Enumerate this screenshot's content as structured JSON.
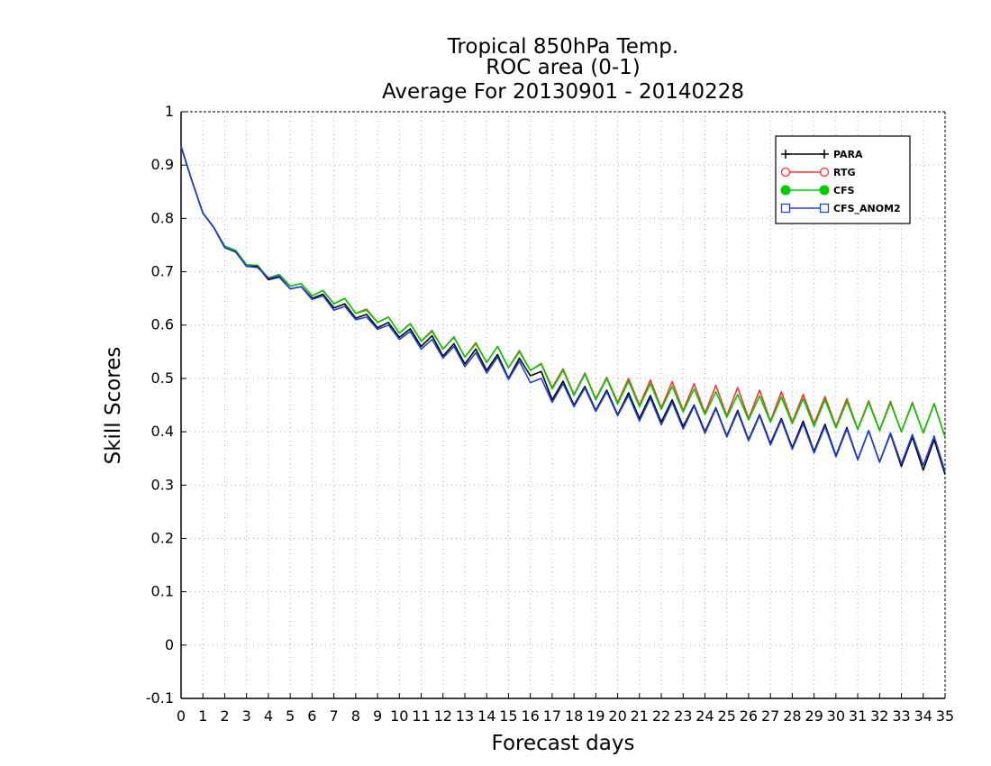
{
  "chart_data": {
    "type": "line",
    "title_lines": [
      "Tropical 850hPa Temp.",
      "ROC area (0-1)",
      "Average For 20130901 - 20140228"
    ],
    "xlabel": "Forecast days",
    "ylabel": "Skill Scores",
    "xlim": [
      0,
      35
    ],
    "ylim": [
      -0.1,
      1
    ],
    "xticks": [
      0,
      1,
      2,
      3,
      4,
      5,
      6,
      7,
      8,
      9,
      10,
      11,
      12,
      13,
      14,
      15,
      16,
      17,
      18,
      19,
      20,
      21,
      22,
      23,
      24,
      25,
      26,
      27,
      28,
      29,
      30,
      31,
      32,
      33,
      34,
      35
    ],
    "yticks": [
      -0.1,
      0,
      0.1,
      0.2,
      0.3,
      0.4,
      0.5,
      0.6,
      0.7,
      0.8,
      0.9,
      1
    ],
    "ytick_labels": [
      "-0.1",
      "0",
      "0.1",
      "0.2",
      "0.3",
      "0.4",
      "0.5",
      "0.6",
      "0.7",
      "0.8",
      "0.9",
      "1"
    ],
    "grid": true,
    "legend_position": "top-right",
    "x": [
      0,
      0.5,
      1,
      1.5,
      2,
      2.5,
      3,
      3.5,
      4,
      4.5,
      5,
      5.5,
      6,
      6.5,
      7,
      7.5,
      8,
      8.5,
      9,
      9.5,
      10,
      10.5,
      11,
      11.5,
      12,
      12.5,
      13,
      13.5,
      14,
      14.5,
      15,
      15.5,
      16,
      16.5,
      17,
      17.5,
      18,
      18.5,
      19,
      19.5,
      20,
      20.5,
      21,
      21.5,
      22,
      22.5,
      23,
      23.5,
      24,
      24.5,
      25,
      25.5,
      26,
      26.5,
      27,
      27.5,
      28,
      28.5,
      29,
      29.5,
      30,
      30.5,
      31,
      31.5,
      32,
      32.5,
      33,
      33.5,
      34,
      34.5,
      35
    ],
    "series": [
      {
        "name": "PARA",
        "color": "#000000",
        "marker": "plus",
        "values": [
          0.935,
          0.87,
          0.81,
          0.783,
          0.745,
          0.737,
          0.71,
          0.71,
          0.685,
          0.69,
          0.668,
          0.672,
          0.65,
          0.658,
          0.632,
          0.64,
          0.613,
          0.62,
          0.595,
          0.605,
          0.577,
          0.593,
          0.56,
          0.58,
          0.542,
          0.565,
          0.527,
          0.555,
          0.515,
          0.545,
          0.5,
          0.538,
          0.505,
          0.513,
          0.46,
          0.495,
          0.45,
          0.485,
          0.44,
          0.478,
          0.432,
          0.473,
          0.425,
          0.468,
          0.418,
          0.46,
          0.41,
          0.45,
          0.4,
          0.445,
          0.392,
          0.44,
          0.385,
          0.432,
          0.378,
          0.425,
          0.37,
          0.42,
          0.363,
          0.414,
          0.355,
          0.408,
          0.348,
          0.402,
          0.343,
          0.396,
          0.335,
          0.39,
          0.328,
          0.385,
          0.32
        ]
      },
      {
        "name": "RTG",
        "color": "#ff3030",
        "marker": "open-circle",
        "values": [
          0.935,
          0.87,
          0.81,
          0.783,
          0.748,
          0.74,
          0.713,
          0.712,
          0.688,
          0.695,
          0.673,
          0.678,
          0.655,
          0.665,
          0.64,
          0.65,
          0.622,
          0.63,
          0.605,
          0.615,
          0.585,
          0.603,
          0.57,
          0.59,
          0.555,
          0.578,
          0.54,
          0.567,
          0.53,
          0.56,
          0.52,
          0.552,
          0.515,
          0.528,
          0.483,
          0.518,
          0.47,
          0.51,
          0.462,
          0.502,
          0.455,
          0.5,
          0.45,
          0.497,
          0.445,
          0.494,
          0.44,
          0.49,
          0.435,
          0.487,
          0.43,
          0.483,
          0.425,
          0.478,
          0.42,
          0.475,
          0.418,
          0.47,
          0.415,
          0.466,
          0.41,
          0.462,
          0.405,
          0.458,
          0.403,
          0.457,
          0.4,
          0.455,
          0.398,
          0.453,
          0.39
        ]
      },
      {
        "name": "CFS",
        "color": "#00cc00",
        "marker": "filled-circle",
        "values": [
          0.935,
          0.87,
          0.81,
          0.783,
          0.748,
          0.74,
          0.713,
          0.712,
          0.688,
          0.695,
          0.673,
          0.678,
          0.655,
          0.665,
          0.64,
          0.65,
          0.622,
          0.628,
          0.605,
          0.615,
          0.585,
          0.602,
          0.57,
          0.588,
          0.555,
          0.577,
          0.54,
          0.565,
          0.53,
          0.56,
          0.52,
          0.55,
          0.515,
          0.527,
          0.48,
          0.515,
          0.468,
          0.508,
          0.46,
          0.5,
          0.452,
          0.495,
          0.447,
          0.49,
          0.442,
          0.485,
          0.437,
          0.48,
          0.432,
          0.475,
          0.427,
          0.47,
          0.422,
          0.467,
          0.418,
          0.465,
          0.415,
          0.462,
          0.41,
          0.46,
          0.407,
          0.457,
          0.404,
          0.455,
          0.402,
          0.454,
          0.4,
          0.453,
          0.398,
          0.452,
          0.39
        ]
      },
      {
        "name": "CFS_ANOM2",
        "color": "#2040e0",
        "marker": "open-square",
        "values": [
          0.935,
          0.87,
          0.81,
          0.783,
          0.745,
          0.738,
          0.71,
          0.708,
          0.688,
          0.692,
          0.668,
          0.672,
          0.648,
          0.655,
          0.628,
          0.635,
          0.61,
          0.615,
          0.592,
          0.6,
          0.573,
          0.588,
          0.555,
          0.573,
          0.538,
          0.56,
          0.522,
          0.548,
          0.51,
          0.54,
          0.498,
          0.532,
          0.492,
          0.5,
          0.455,
          0.49,
          0.447,
          0.482,
          0.438,
          0.475,
          0.43,
          0.468,
          0.42,
          0.463,
          0.413,
          0.455,
          0.405,
          0.448,
          0.397,
          0.443,
          0.39,
          0.437,
          0.383,
          0.43,
          0.375,
          0.422,
          0.367,
          0.415,
          0.36,
          0.41,
          0.353,
          0.405,
          0.347,
          0.402,
          0.343,
          0.398,
          0.34,
          0.395,
          0.337,
          0.392,
          0.325
        ]
      }
    ]
  }
}
